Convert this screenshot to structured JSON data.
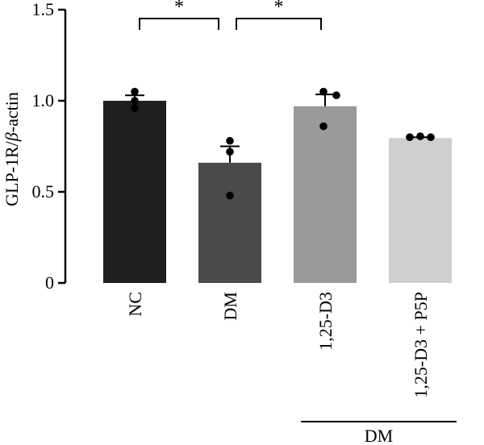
{
  "chart_data": {
    "type": "bar",
    "categories": [
      "NC",
      "DM",
      "1,25-D3",
      "1,25-D3 + P5P"
    ],
    "values": [
      1.0,
      0.66,
      0.97,
      0.795
    ],
    "errors": [
      0.03,
      0.09,
      0.065,
      0.005
    ],
    "points": [
      [
        1.05,
        1.0,
        0.96
      ],
      [
        0.78,
        0.72,
        0.48
      ],
      [
        1.05,
        1.03,
        0.86
      ],
      [
        0.8,
        0.805,
        0.8
      ]
    ],
    "bar_colors": [
      "#1f1f1f",
      "#4a4a4a",
      "#9a9a9a",
      "#cfcfcf"
    ],
    "ylabel_main": "GLP-1R/",
    "ylabel_italic": "β",
    "ylabel_rest": "-actin",
    "ylim": [
      0,
      1.5
    ],
    "yticks": [
      {
        "value": 0,
        "label": "0"
      },
      {
        "value": 0.5,
        "label": "0.5"
      },
      {
        "value": 1.0,
        "label": "1.0"
      },
      {
        "value": 1.5,
        "label": "1.5"
      }
    ],
    "significance": [
      {
        "from": 0,
        "to": 1,
        "label": "*"
      },
      {
        "from": 1,
        "to": 2,
        "label": "*"
      }
    ],
    "group_label": {
      "text": "DM",
      "from": 2,
      "to": 3
    }
  }
}
